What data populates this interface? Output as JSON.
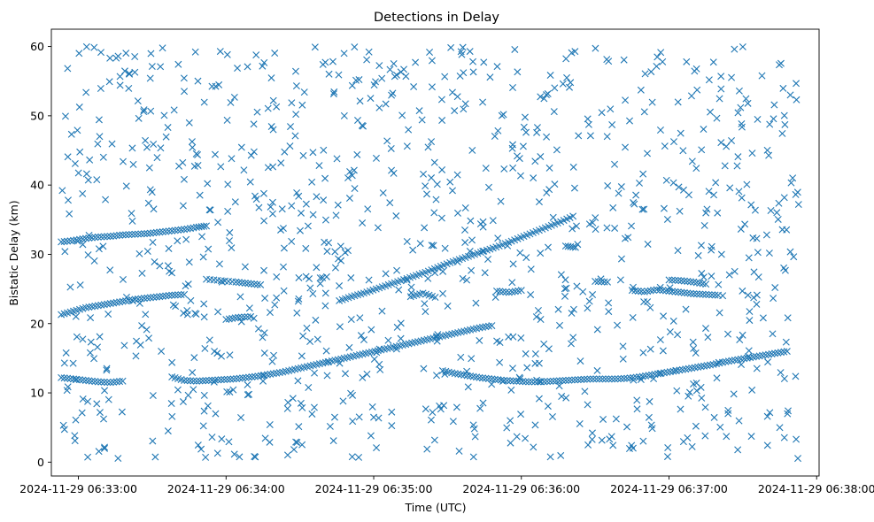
{
  "chart_data": {
    "type": "scatter",
    "title": "Detections in Delay",
    "xlabel": "Time (UTC)",
    "ylabel": "Bistatic Delay (km)",
    "marker": "x",
    "color": "#1f77b4",
    "xlim": [
      "2024-11-29 06:32:49",
      "2024-11-29 06:38:01"
    ],
    "ylim": [
      -2,
      62.5
    ],
    "xticks": [
      {
        "t": "2024-11-29 06:33:00",
        "label": "2024-11-29 06:33:00"
      },
      {
        "t": "2024-11-29 06:34:00",
        "label": "2024-11-29 06:34:00"
      },
      {
        "t": "2024-11-29 06:35:00",
        "label": "2024-11-29 06:35:00"
      },
      {
        "t": "2024-11-29 06:36:00",
        "label": "2024-11-29 06:36:00"
      },
      {
        "t": "2024-11-29 06:37:00",
        "label": "2024-11-29 06:37:00"
      },
      {
        "t": "2024-11-29 06:38:00",
        "label": "2024-11-29 06:38:00"
      }
    ],
    "yticks": [
      0,
      10,
      20,
      30,
      40,
      50,
      60
    ],
    "grid": false,
    "track_points": [
      {
        "x": "2024-11-29 06:32:53",
        "y": 31.8
      },
      {
        "x": "2024-11-29 06:32:58",
        "y": 32.0
      },
      {
        "x": "2024-11-29 06:33:03",
        "y": 32.3
      },
      {
        "x": "2024-11-29 06:33:08",
        "y": 32.5
      },
      {
        "x": "2024-11-29 06:33:13",
        "y": 32.6
      },
      {
        "x": "2024-11-29 06:33:18",
        "y": 32.8
      },
      {
        "x": "2024-11-29 06:33:23",
        "y": 32.9
      },
      {
        "x": "2024-11-29 06:33:28",
        "y": 33.0
      },
      {
        "x": "2024-11-29 06:33:33",
        "y": 33.2
      },
      {
        "x": "2024-11-29 06:33:38",
        "y": 33.4
      },
      {
        "x": "2024-11-29 06:33:43",
        "y": 33.6
      },
      {
        "x": "2024-11-29 06:33:48",
        "y": 33.9
      },
      {
        "x": "2024-11-29 06:33:52",
        "y": 34.1
      },
      {
        "x": "2024-11-29 06:32:53",
        "y": 21.3
      },
      {
        "x": "2024-11-29 06:32:58",
        "y": 21.8
      },
      {
        "x": "2024-11-29 06:33:03",
        "y": 22.3
      },
      {
        "x": "2024-11-29 06:33:08",
        "y": 22.6
      },
      {
        "x": "2024-11-29 06:33:13",
        "y": 22.9
      },
      {
        "x": "2024-11-29 06:33:18",
        "y": 23.2
      },
      {
        "x": "2024-11-29 06:33:23",
        "y": 23.5
      },
      {
        "x": "2024-11-29 06:33:28",
        "y": 23.7
      },
      {
        "x": "2024-11-29 06:33:33",
        "y": 23.9
      },
      {
        "x": "2024-11-29 06:33:38",
        "y": 24.1
      },
      {
        "x": "2024-11-29 06:33:43",
        "y": 24.2
      },
      {
        "x": "2024-11-29 06:33:52",
        "y": 26.4
      },
      {
        "x": "2024-11-29 06:33:58",
        "y": 26.2
      },
      {
        "x": "2024-11-29 06:34:04",
        "y": 26.0
      },
      {
        "x": "2024-11-29 06:34:09",
        "y": 25.8
      },
      {
        "x": "2024-11-29 06:34:14",
        "y": 25.6
      },
      {
        "x": "2024-11-29 06:32:53",
        "y": 12.2
      },
      {
        "x": "2024-11-29 06:32:58",
        "y": 12.0
      },
      {
        "x": "2024-11-29 06:33:03",
        "y": 11.8
      },
      {
        "x": "2024-11-29 06:33:08",
        "y": 11.6
      },
      {
        "x": "2024-11-29 06:33:13",
        "y": 11.5
      },
      {
        "x": "2024-11-29 06:33:18",
        "y": 11.7
      },
      {
        "x": "2024-11-29 06:33:38",
        "y": 12.3
      },
      {
        "x": "2024-11-29 06:33:43",
        "y": 11.8
      },
      {
        "x": "2024-11-29 06:33:48",
        "y": 11.7
      },
      {
        "x": "2024-11-29 06:33:53",
        "y": 11.8
      },
      {
        "x": "2024-11-29 06:33:58",
        "y": 11.9
      },
      {
        "x": "2024-11-29 06:34:03",
        "y": 12.0
      },
      {
        "x": "2024-11-29 06:34:08",
        "y": 12.2
      },
      {
        "x": "2024-11-29 06:34:13",
        "y": 12.4
      },
      {
        "x": "2024-11-29 06:34:18",
        "y": 12.7
      },
      {
        "x": "2024-11-29 06:34:23",
        "y": 13.0
      },
      {
        "x": "2024-11-29 06:34:28",
        "y": 13.4
      },
      {
        "x": "2024-11-29 06:34:33",
        "y": 13.8
      },
      {
        "x": "2024-11-29 06:34:38",
        "y": 14.2
      },
      {
        "x": "2024-11-29 06:34:43",
        "y": 14.6
      },
      {
        "x": "2024-11-29 06:34:48",
        "y": 15.0
      },
      {
        "x": "2024-11-29 06:34:53",
        "y": 15.4
      },
      {
        "x": "2024-11-29 06:34:58",
        "y": 15.8
      },
      {
        "x": "2024-11-29 06:35:03",
        "y": 16.2
      },
      {
        "x": "2024-11-29 06:35:08",
        "y": 16.6
      },
      {
        "x": "2024-11-29 06:35:13",
        "y": 17.0
      },
      {
        "x": "2024-11-29 06:35:18",
        "y": 17.4
      },
      {
        "x": "2024-11-29 06:35:23",
        "y": 17.8
      },
      {
        "x": "2024-11-29 06:35:28",
        "y": 18.2
      },
      {
        "x": "2024-11-29 06:35:33",
        "y": 18.6
      },
      {
        "x": "2024-11-29 06:35:38",
        "y": 19.0
      },
      {
        "x": "2024-11-29 06:35:43",
        "y": 19.4
      },
      {
        "x": "2024-11-29 06:35:48",
        "y": 19.7
      },
      {
        "x": "2024-11-29 06:34:46",
        "y": 23.3
      },
      {
        "x": "2024-11-29 06:34:51",
        "y": 23.9
      },
      {
        "x": "2024-11-29 06:34:56",
        "y": 24.4
      },
      {
        "x": "2024-11-29 06:35:01",
        "y": 25.0
      },
      {
        "x": "2024-11-29 06:35:06",
        "y": 25.6
      },
      {
        "x": "2024-11-29 06:35:11",
        "y": 26.2
      },
      {
        "x": "2024-11-29 06:35:16",
        "y": 26.8
      },
      {
        "x": "2024-11-29 06:35:21",
        "y": 27.4
      },
      {
        "x": "2024-11-29 06:35:26",
        "y": 28.1
      },
      {
        "x": "2024-11-29 06:35:31",
        "y": 28.8
      },
      {
        "x": "2024-11-29 06:35:36",
        "y": 29.4
      },
      {
        "x": "2024-11-29 06:35:41",
        "y": 30.0
      },
      {
        "x": "2024-11-29 06:35:46",
        "y": 30.6
      },
      {
        "x": "2024-11-29 06:35:51",
        "y": 31.2
      },
      {
        "x": "2024-11-29 06:35:56",
        "y": 31.9
      },
      {
        "x": "2024-11-29 06:36:01",
        "y": 32.6
      },
      {
        "x": "2024-11-29 06:36:06",
        "y": 33.3
      },
      {
        "x": "2024-11-29 06:36:11",
        "y": 34.0
      },
      {
        "x": "2024-11-29 06:36:16",
        "y": 34.7
      },
      {
        "x": "2024-11-29 06:36:21",
        "y": 35.5
      },
      {
        "x": "2024-11-29 06:35:28",
        "y": 13.2
      },
      {
        "x": "2024-11-29 06:35:33",
        "y": 12.8
      },
      {
        "x": "2024-11-29 06:35:38",
        "y": 12.5
      },
      {
        "x": "2024-11-29 06:35:43",
        "y": 12.2
      },
      {
        "x": "2024-11-29 06:35:48",
        "y": 12.0
      },
      {
        "x": "2024-11-29 06:35:53",
        "y": 11.8
      },
      {
        "x": "2024-11-29 06:35:58",
        "y": 11.7
      },
      {
        "x": "2024-11-29 06:36:03",
        "y": 11.6
      },
      {
        "x": "2024-11-29 06:36:08",
        "y": 11.6
      },
      {
        "x": "2024-11-29 06:36:13",
        "y": 11.7
      },
      {
        "x": "2024-11-29 06:36:18",
        "y": 11.8
      },
      {
        "x": "2024-11-29 06:36:23",
        "y": 11.9
      },
      {
        "x": "2024-11-29 06:36:28",
        "y": 12.0
      },
      {
        "x": "2024-11-29 06:36:33",
        "y": 12.0
      },
      {
        "x": "2024-11-29 06:36:38",
        "y": 12.0
      },
      {
        "x": "2024-11-29 06:36:43",
        "y": 12.1
      },
      {
        "x": "2024-11-29 06:36:48",
        "y": 12.3
      },
      {
        "x": "2024-11-29 06:36:53",
        "y": 12.6
      },
      {
        "x": "2024-11-29 06:36:58",
        "y": 12.9
      },
      {
        "x": "2024-11-29 06:37:03",
        "y": 13.2
      },
      {
        "x": "2024-11-29 06:37:08",
        "y": 13.5
      },
      {
        "x": "2024-11-29 06:37:13",
        "y": 13.8
      },
      {
        "x": "2024-11-29 06:37:18",
        "y": 14.1
      },
      {
        "x": "2024-11-29 06:37:23",
        "y": 14.5
      },
      {
        "x": "2024-11-29 06:37:28",
        "y": 14.8
      },
      {
        "x": "2024-11-29 06:37:33",
        "y": 15.1
      },
      {
        "x": "2024-11-29 06:37:38",
        "y": 15.4
      },
      {
        "x": "2024-11-29 06:37:43",
        "y": 15.7
      },
      {
        "x": "2024-11-29 06:37:48",
        "y": 16.0
      },
      {
        "x": "2024-11-29 06:36:45",
        "y": 24.8
      },
      {
        "x": "2024-11-29 06:36:50",
        "y": 24.6
      },
      {
        "x": "2024-11-29 06:36:55",
        "y": 24.9
      },
      {
        "x": "2024-11-29 06:37:00",
        "y": 24.7
      },
      {
        "x": "2024-11-29 06:37:05",
        "y": 24.5
      },
      {
        "x": "2024-11-29 06:37:10",
        "y": 24.3
      },
      {
        "x": "2024-11-29 06:37:15",
        "y": 24.2
      },
      {
        "x": "2024-11-29 06:37:20",
        "y": 24.1
      },
      {
        "x": "2024-11-29 06:37:00",
        "y": 26.3
      },
      {
        "x": "2024-11-29 06:37:05",
        "y": 26.2
      },
      {
        "x": "2024-11-29 06:37:10",
        "y": 26.0
      },
      {
        "x": "2024-11-29 06:37:15",
        "y": 25.7
      },
      {
        "x": "2024-11-29 06:36:25",
        "y": 24.6
      },
      {
        "x": "2024-11-29 06:36:30",
        "y": 26.1
      },
      {
        "x": "2024-11-29 06:36:35",
        "y": 26.0
      },
      {
        "x": "2024-11-29 06:34:00",
        "y": 20.6
      },
      {
        "x": "2024-11-29 06:34:05",
        "y": 20.9
      },
      {
        "x": "2024-11-29 06:34:10",
        "y": 21.0
      },
      {
        "x": "2024-11-29 06:35:50",
        "y": 24.7
      },
      {
        "x": "2024-11-29 06:35:55",
        "y": 24.5
      },
      {
        "x": "2024-11-29 06:36:00",
        "y": 24.8
      },
      {
        "x": "2024-11-29 06:36:18",
        "y": 31.2
      },
      {
        "x": "2024-11-29 06:36:22",
        "y": 31.0
      },
      {
        "x": "2024-11-29 06:35:15",
        "y": 23.9
      },
      {
        "x": "2024-11-29 06:35:20",
        "y": 24.4
      },
      {
        "x": "2024-11-29 06:35:25",
        "y": 23.8
      }
    ],
    "scatter_noise": {
      "approximate_count": 1000,
      "x_range": [
        "2024-11-29 06:32:53",
        "2024-11-29 06:37:53"
      ],
      "y_range": [
        0.5,
        60
      ]
    }
  }
}
